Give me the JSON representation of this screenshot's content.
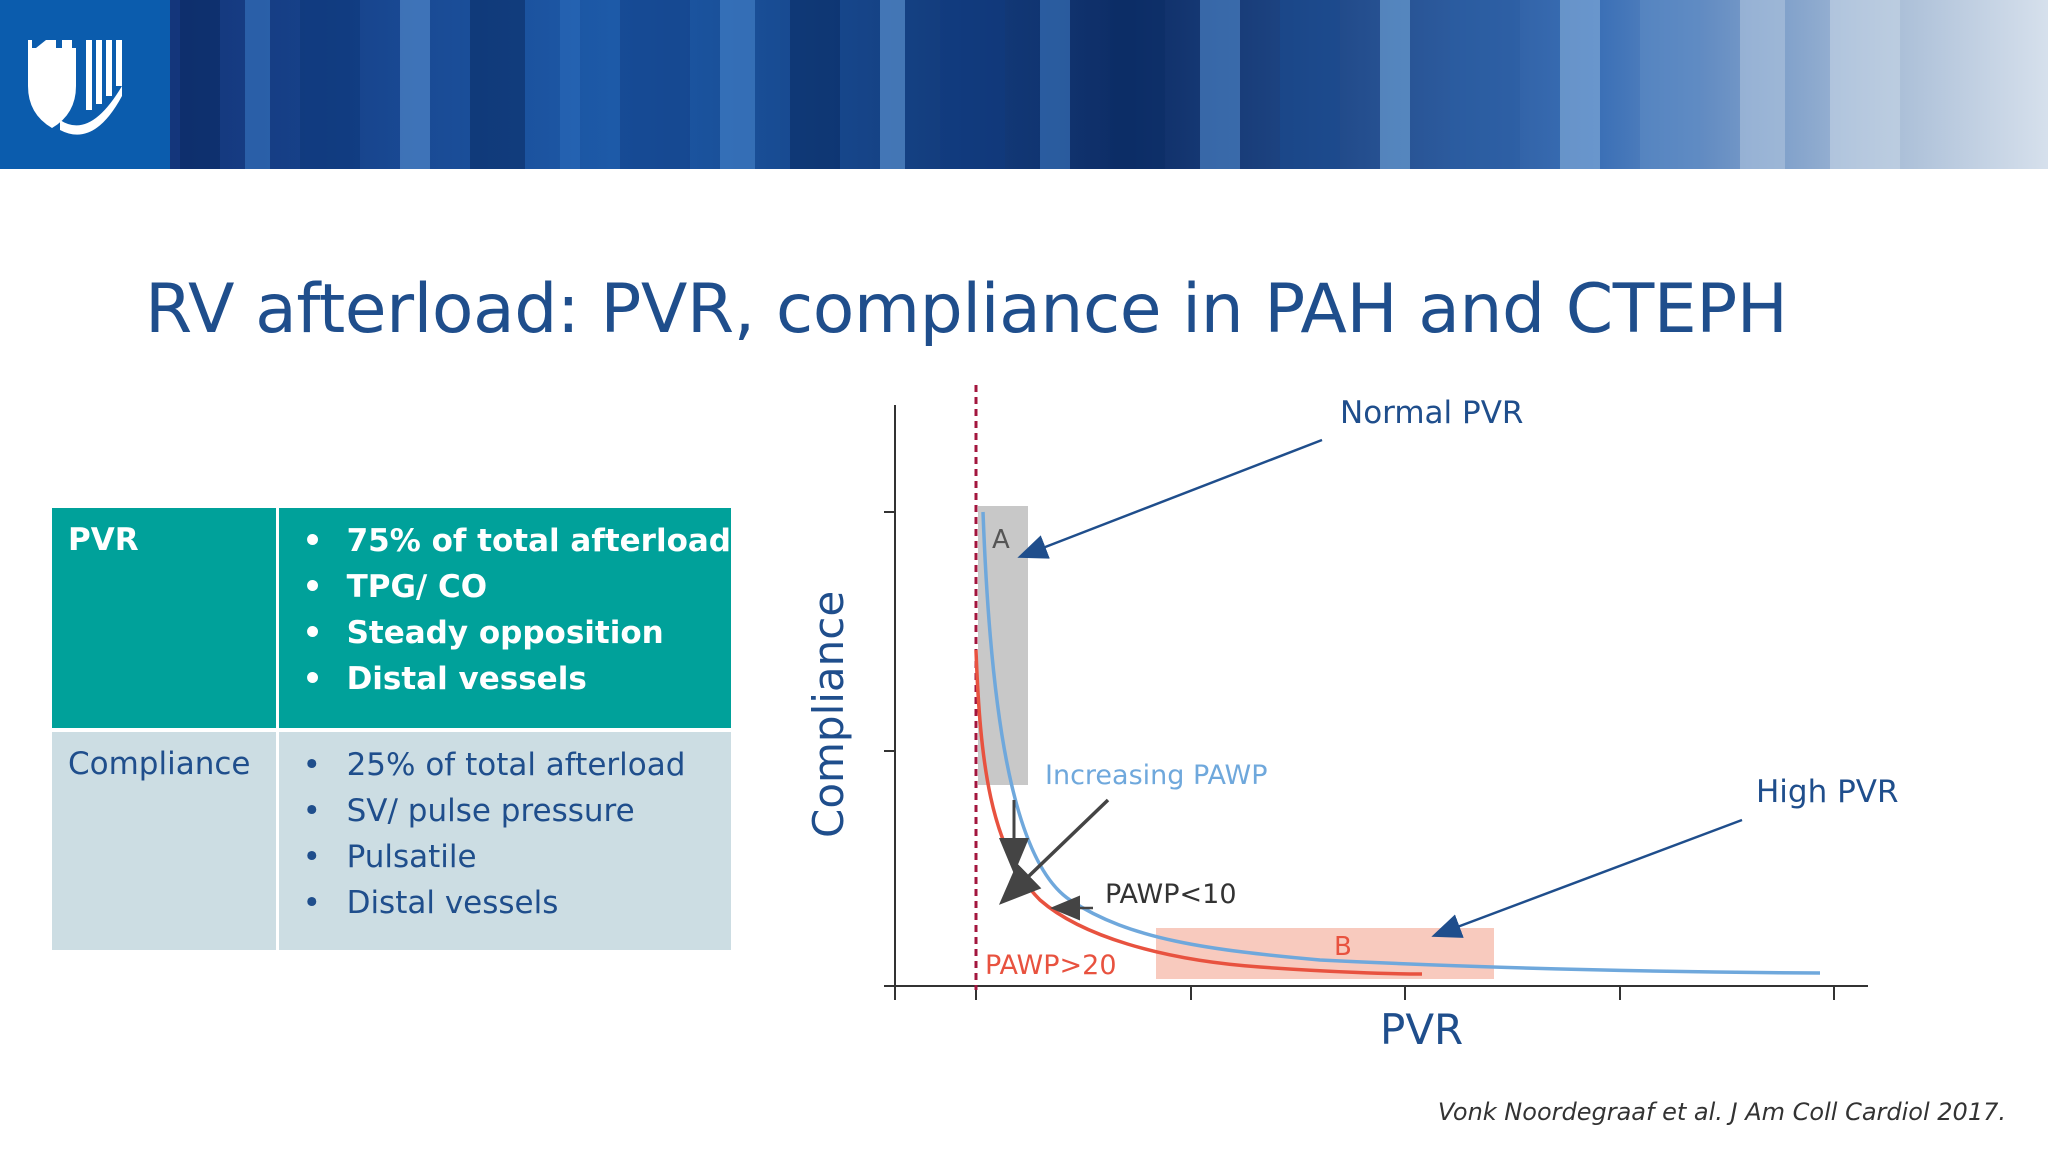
{
  "slide": {
    "title": "RV afterload: PVR, compliance in PAH and CTEPH",
    "citation": "Vonk Noordegraaf et al. J Am Coll Cardiol 2017."
  },
  "table": {
    "rows": [
      {
        "label": "PVR",
        "items": [
          "75% of total afterload",
          "TPG/ CO",
          "Steady opposition",
          "Distal vessels"
        ]
      },
      {
        "label": "Compliance",
        "items": [
          "25% of total afterload",
          "SV/ pulse pressure",
          "Pulsatile",
          "Distal vessels"
        ]
      }
    ]
  },
  "colors": {
    "title": "#1f4e8c",
    "pvr_row": "#00a19a",
    "compliance_row": "#ccdde3",
    "curve_blue": "#6fa8dc",
    "curve_red": "#e8523f",
    "dashed_line": "#a3163e",
    "annotation_arrow": "#1f4e8c"
  },
  "chart_data": {
    "type": "line",
    "xlabel": "PVR",
    "ylabel": "Compliance",
    "grid": false,
    "series": [
      {
        "name": "PAWP<10",
        "color": "#6fa8dc"
      },
      {
        "name": "PAWP>20",
        "color": "#e8523f"
      }
    ],
    "regions": [
      "A",
      "B"
    ],
    "annotations": [
      "Normal PVR",
      "High PVR",
      "Increasing PAWP",
      "PAWP<10",
      "PAWP>20"
    ]
  }
}
